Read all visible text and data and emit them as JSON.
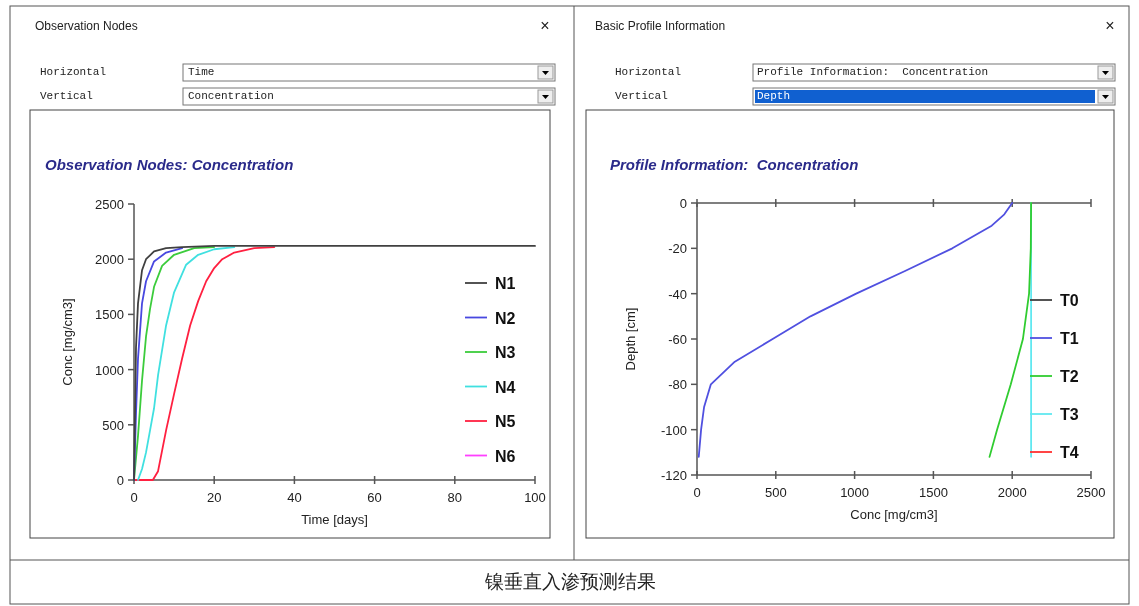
{
  "chart_data": [
    {
      "type": "line",
      "title": "Observation Nodes: Concentration",
      "xlabel": "Time [days]",
      "ylabel": "Conc [mg/cm3]",
      "xlim": [
        0,
        100
      ],
      "xticks": [
        0,
        20,
        40,
        60,
        80,
        100
      ],
      "ylim": [
        0,
        2500
      ],
      "yticks": [
        0,
        500,
        1000,
        1500,
        2000,
        2500
      ],
      "legend": "right",
      "annotations": [
        "Observation Nodes",
        "×",
        "Horizontal",
        "Time",
        "Vertical",
        "Concentration"
      ],
      "series": [
        {
          "name": "N1",
          "color": "#404040",
          "x": [
            0,
            0.5,
            1,
            2,
            3,
            5,
            8,
            12,
            20,
            40,
            100
          ],
          "values": [
            0,
            1200,
            1600,
            1900,
            2000,
            2070,
            2100,
            2110,
            2120,
            2120,
            2120
          ]
        },
        {
          "name": "N2",
          "color": "#4848e0",
          "x": [
            0,
            0.5,
            1,
            2,
            3,
            5,
            8,
            12
          ],
          "values": [
            0,
            600,
            1100,
            1600,
            1800,
            1980,
            2060,
            2100
          ]
        },
        {
          "name": "N3",
          "color": "#3ccc3c",
          "x": [
            0,
            1,
            2,
            3,
            4,
            5,
            7,
            10,
            15,
            20
          ],
          "values": [
            0,
            400,
            900,
            1300,
            1550,
            1750,
            1940,
            2040,
            2100,
            2110
          ]
        },
        {
          "name": "N4",
          "color": "#40e0e0",
          "x": [
            1,
            2,
            3,
            4,
            5,
            6,
            8,
            10,
            13,
            16,
            20,
            25
          ],
          "values": [
            0,
            100,
            250,
            450,
            650,
            950,
            1400,
            1700,
            1950,
            2040,
            2090,
            2110
          ]
        },
        {
          "name": "N5",
          "color": "#ff2040",
          "x": [
            0,
            4.7,
            6,
            8,
            10,
            12,
            14,
            16,
            18,
            20,
            22,
            25,
            30,
            35
          ],
          "values": [
            0,
            0,
            80,
            450,
            780,
            1100,
            1400,
            1620,
            1800,
            1920,
            2000,
            2060,
            2100,
            2110
          ]
        },
        {
          "name": "N6",
          "color": "#ff40ff",
          "x": [
            null,
            null
          ],
          "values": [
            null,
            null
          ]
        }
      ]
    },
    {
      "type": "line",
      "title": "Profile Information:  Concentration",
      "xlabel": "Conc [mg/cm3]",
      "ylabel": "Depth [cm]",
      "xlim": [
        0,
        2500
      ],
      "xticks": [
        0,
        500,
        1000,
        1500,
        2000,
        2500
      ],
      "ylim": [
        -120,
        0
      ],
      "yticks": [
        -120,
        -100,
        -80,
        -60,
        -40,
        -20,
        0
      ],
      "legend": "right",
      "annotations": [
        "Basic Profile Information",
        "×",
        "Horizontal",
        "Profile Information:  Concentration",
        "Vertical",
        "Depth",
        "镍垂直入渗预测结果"
      ],
      "series": [
        {
          "name": "T0",
          "color": "#404040",
          "x": [
            null,
            null
          ],
          "values": [
            null,
            null
          ]
        },
        {
          "name": "T1",
          "color": "#5050e0",
          "x": [
            2000,
            1950,
            1870,
            1620,
            1320,
            1010,
            720,
            480,
            240,
            88,
            45,
            26,
            11
          ],
          "values": [
            0,
            -5,
            -10,
            -20,
            -30,
            -40,
            -50,
            -60,
            -70,
            -80,
            -90,
            -100,
            -112
          ]
        },
        {
          "name": "T2",
          "color": "#30cc30",
          "x": [
            2120,
            2118,
            2107,
            2068,
            1991,
            1904,
            1856
          ],
          "values": [
            0,
            -20,
            -40,
            -60,
            -80,
            -100,
            -112
          ]
        },
        {
          "name": "T3",
          "color": "#60e8f0",
          "x": [
            2120,
            2120
          ],
          "values": [
            0,
            -112
          ]
        },
        {
          "name": "T4",
          "color": "#ff3030",
          "x": [
            null,
            null
          ],
          "values": [
            null,
            null
          ]
        }
      ]
    }
  ]
}
